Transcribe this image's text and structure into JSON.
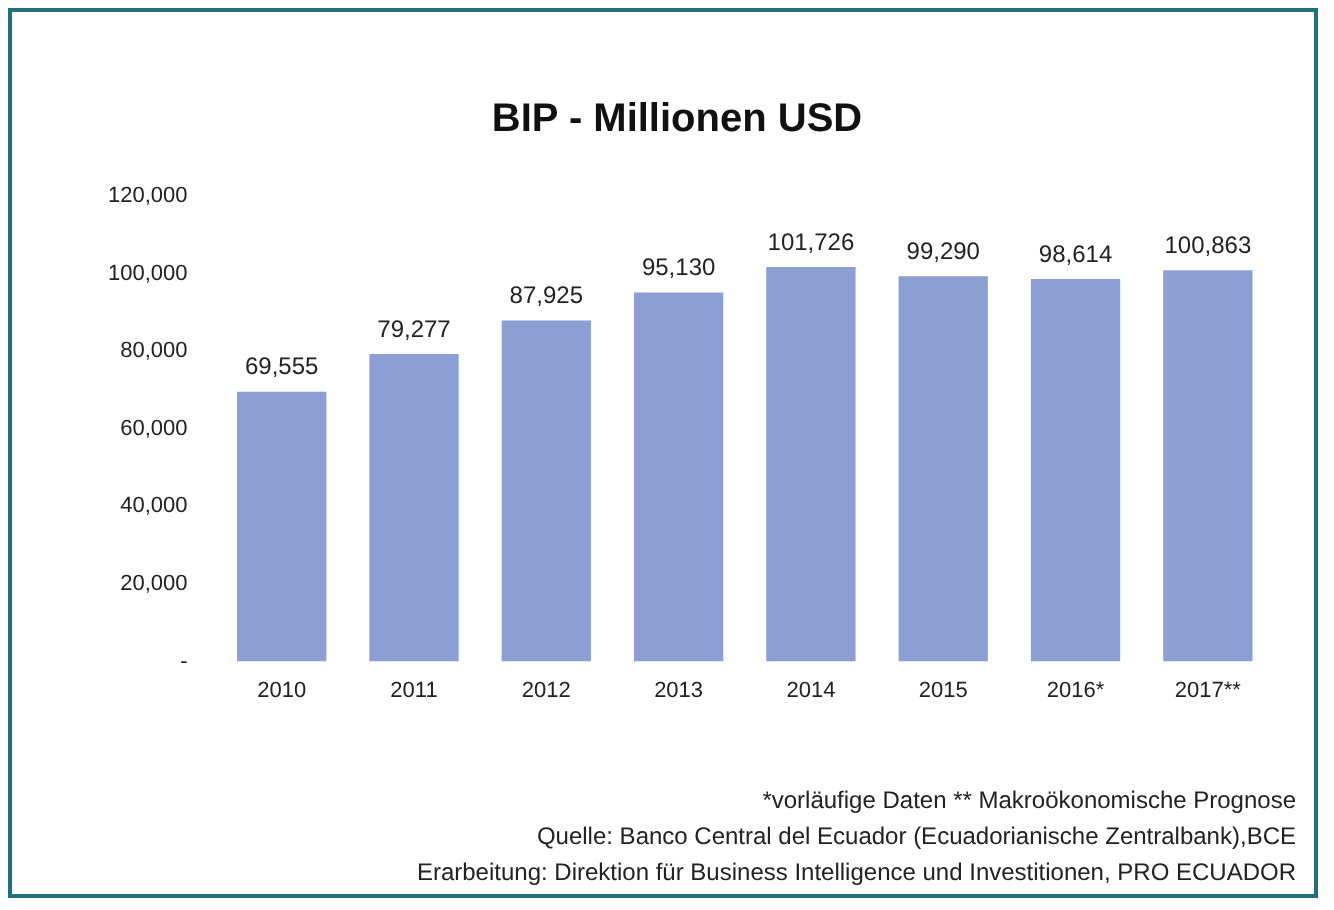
{
  "chart_data": {
    "type": "bar",
    "title": "BIP - Millionen USD",
    "categories": [
      "2010",
      "2011",
      "2012",
      "2013",
      "2014",
      "2015",
      "2016*",
      "2017**"
    ],
    "values": [
      69555,
      79277,
      87925,
      95130,
      101726,
      99290,
      98614,
      100863
    ],
    "color": "#8c9fd4",
    "ylim": [
      0,
      120000
    ],
    "value_labels": [
      "69,555",
      "79,277",
      "87,925",
      "95,130",
      "101,726",
      "99,290",
      "98,614",
      "100,863"
    ],
    "yticks": [
      {
        "value": 0,
        "label": "-"
      },
      {
        "value": 20000,
        "label": "20,000"
      },
      {
        "value": 40000,
        "label": "40,000"
      },
      {
        "value": 60000,
        "label": "60,000"
      },
      {
        "value": 80000,
        "label": "80,000"
      },
      {
        "value": 100000,
        "label": "100,000"
      },
      {
        "value": 120000,
        "label": "120,000"
      }
    ],
    "grid": false,
    "legend": false,
    "annotations": [
      "*vorläufige Daten ** Makroökonomische Prognose",
      "Quelle: Banco Central del Ecuador (Ecuadorianische Zentralbank),BCE",
      "Erarbeitung: Direktion für Business Intelligence und Investitionen, PRO ECUADOR"
    ]
  }
}
